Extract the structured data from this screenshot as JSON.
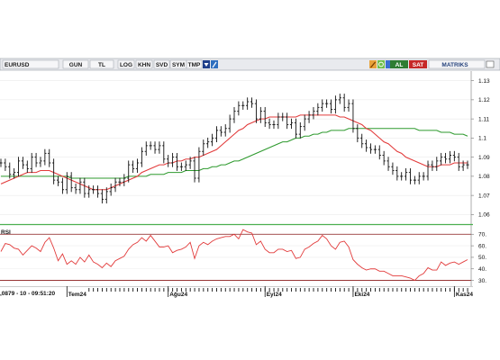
{
  "toolbar": {
    "symbol": "EURUSD",
    "period": "GUN",
    "currency": "TL",
    "buttons": [
      "LOG",
      "KHN",
      "SVD",
      "SYM",
      "TMP"
    ],
    "buy": "AL",
    "sell": "SAT",
    "brand": "MATRIKS"
  },
  "colors": {
    "price_bars": "#111111",
    "ma_short": "#e23b3b",
    "ma_long": "#2e9a2e",
    "rsi_line": "#e23b3b",
    "rsi_bands": "#8b1a1a",
    "panel_sep": "#4caf50",
    "buy_bg": "#2e7d32",
    "sell_bg": "#c62828"
  },
  "status": {
    "readout": ",0879 - 10 - 09:51:20"
  },
  "chart_data": [
    {
      "type": "line",
      "subtype": "ohlc_bars",
      "x": [
        "Haz24",
        "Haz24",
        "Haz24",
        "Haz24",
        "Haz24",
        "Haz24",
        "Haz24",
        "Haz24",
        "Haz24",
        "Haz24",
        "Haz24",
        "Haz24",
        "Haz24",
        "Haz24",
        "Haz24",
        "Tem24",
        "Tem24",
        "Tem24",
        "Tem24",
        "Tem24",
        "Tem24",
        "Tem24",
        "Tem24",
        "Tem24",
        "Tem24",
        "Tem24",
        "Tem24",
        "Tem24",
        "Tem24",
        "Tem24",
        "Tem24",
        "Tem24",
        "Tem24",
        "Tem24",
        "Tem24",
        "Tem24",
        "Tem24",
        "Tem24",
        "Ağu24",
        "Ağu24",
        "Ağu24",
        "Ağu24",
        "Ağu24",
        "Ağu24",
        "Ağu24",
        "Ağu24",
        "Ağu24",
        "Ağu24",
        "Ağu24",
        "Ağu24",
        "Ağu24",
        "Ağu24",
        "Ağu24",
        "Ağu24",
        "Ağu24",
        "Ağu24",
        "Ağu24",
        "Ağu24",
        "Ağu24",
        "Ağu24",
        "Eyl24",
        "Eyl24",
        "Eyl24",
        "Eyl24",
        "Eyl24",
        "Eyl24",
        "Eyl24",
        "Eyl24",
        "Eyl24",
        "Eyl24",
        "Eyl24",
        "Eyl24",
        "Eyl24",
        "Eyl24",
        "Eyl24",
        "Eyl24",
        "Eyl24",
        "Eyl24",
        "Eyl24",
        "Eyl24",
        "Eki24",
        "Eki24",
        "Eki24",
        "Eki24",
        "Eki24",
        "Eki24",
        "Eki24",
        "Eki24",
        "Eki24",
        "Eki24",
        "Eki24",
        "Eki24",
        "Eki24",
        "Eki24",
        "Eki24",
        "Eki24",
        "Eki24",
        "Eki24",
        "Eki24",
        "Eki24",
        "Eki24",
        "Eki24",
        "Eki24",
        "Kas24",
        "Kas24",
        "Kas24",
        "Kas24"
      ],
      "x_ticks": [
        "Tem24",
        "Ağu24",
        "Eyl24",
        "Eki24",
        "Kas24"
      ],
      "series": [
        {
          "role": "price",
          "values": [
            1.087,
            1.085,
            1.081,
            1.082,
            1.088,
            1.086,
            1.084,
            1.09,
            1.087,
            1.088,
            1.092,
            1.087,
            1.078,
            1.077,
            1.073,
            1.08,
            1.074,
            1.073,
            1.077,
            1.071,
            1.073,
            1.073,
            1.071,
            1.068,
            1.072,
            1.074,
            1.077,
            1.077,
            1.079,
            1.086,
            1.084,
            1.087,
            1.093,
            1.096,
            1.096,
            1.094,
            1.096,
            1.089,
            1.087,
            1.09,
            1.085,
            1.085,
            1.086,
            1.088,
            1.079,
            1.093,
            1.097,
            1.098,
            1.1,
            1.104,
            1.103,
            1.105,
            1.11,
            1.114,
            1.117,
            1.117,
            1.119,
            1.118,
            1.11,
            1.114,
            1.108,
            1.107,
            1.107,
            1.111,
            1.111,
            1.107,
            1.108,
            1.102,
            1.106,
            1.11,
            1.112,
            1.114,
            1.116,
            1.118,
            1.118,
            1.115,
            1.12,
            1.121,
            1.116,
            1.118,
            1.105,
            1.1,
            1.097,
            1.095,
            1.094,
            1.094,
            1.091,
            1.088,
            1.085,
            1.083,
            1.08,
            1.08,
            1.082,
            1.078,
            1.078,
            1.08,
            1.08,
            1.086,
            1.085,
            1.088,
            1.09,
            1.089,
            1.091,
            1.09,
            1.085,
            1.086,
            1.086
          ]
        },
        {
          "role": "moving-average-short",
          "values": [
            1.076,
            1.077,
            1.078,
            1.079,
            1.08,
            1.081,
            1.082,
            1.082,
            1.082,
            1.083,
            1.083,
            1.083,
            1.082,
            1.081,
            1.08,
            1.079,
            1.078,
            1.077,
            1.076,
            1.075,
            1.074,
            1.073,
            1.073,
            1.073,
            1.073,
            1.074,
            1.075,
            1.076,
            1.077,
            1.078,
            1.079,
            1.08,
            1.082,
            1.083,
            1.084,
            1.085,
            1.086,
            1.086,
            1.087,
            1.087,
            1.088,
            1.088,
            1.089,
            1.089,
            1.09,
            1.09,
            1.091,
            1.092,
            1.093,
            1.094,
            1.096,
            1.098,
            1.1,
            1.102,
            1.104,
            1.105,
            1.107,
            1.108,
            1.109,
            1.11,
            1.11,
            1.111,
            1.111,
            1.111,
            1.111,
            1.111,
            1.111,
            1.111,
            1.112,
            1.112,
            1.112,
            1.112,
            1.112,
            1.112,
            1.112,
            1.112,
            1.112,
            1.111,
            1.111,
            1.11,
            1.109,
            1.108,
            1.107,
            1.105,
            1.104,
            1.102,
            1.1,
            1.098,
            1.097,
            1.095,
            1.093,
            1.092,
            1.09,
            1.089,
            1.088,
            1.087,
            1.086,
            1.085,
            1.085,
            1.085,
            1.086,
            1.086,
            1.086,
            1.087,
            1.087,
            1.087,
            1.087
          ]
        },
        {
          "role": "moving-average-long",
          "values": [
            1.08,
            1.08,
            1.08,
            1.08,
            1.08,
            1.08,
            1.08,
            1.08,
            1.08,
            1.08,
            1.08,
            1.08,
            1.08,
            1.08,
            1.08,
            1.08,
            1.079,
            1.079,
            1.079,
            1.079,
            1.079,
            1.079,
            1.079,
            1.079,
            1.079,
            1.079,
            1.079,
            1.079,
            1.079,
            1.08,
            1.08,
            1.08,
            1.08,
            1.08,
            1.081,
            1.081,
            1.081,
            1.081,
            1.082,
            1.082,
            1.082,
            1.082,
            1.083,
            1.083,
            1.083,
            1.083,
            1.084,
            1.084,
            1.085,
            1.085,
            1.086,
            1.086,
            1.087,
            1.088,
            1.088,
            1.089,
            1.09,
            1.091,
            1.092,
            1.093,
            1.094,
            1.095,
            1.096,
            1.097,
            1.098,
            1.098,
            1.099,
            1.1,
            1.1,
            1.101,
            1.101,
            1.102,
            1.102,
            1.103,
            1.103,
            1.104,
            1.104,
            1.104,
            1.104,
            1.105,
            1.105,
            1.105,
            1.105,
            1.105,
            1.105,
            1.105,
            1.105,
            1.105,
            1.105,
            1.105,
            1.105,
            1.105,
            1.105,
            1.105,
            1.105,
            1.104,
            1.104,
            1.104,
            1.104,
            1.104,
            1.103,
            1.103,
            1.103,
            1.102,
            1.102,
            1.102,
            1.101
          ]
        }
      ],
      "y_ticks": [
        "1.13",
        "1.12",
        "1.11",
        "1.1",
        "1.09",
        "1.08",
        "1.07",
        "1.06"
      ],
      "ylim": [
        1.055,
        1.135
      ],
      "grid": true
    },
    {
      "type": "line",
      "title": "RSI",
      "series": [
        {
          "name": "RSI",
          "values": [
            55,
            62,
            61,
            58,
            57,
            52,
            56,
            60,
            58,
            55,
            63,
            67,
            58,
            47,
            53,
            44,
            47,
            44,
            50,
            46,
            52,
            46,
            44,
            41,
            45,
            42,
            47,
            49,
            51,
            57,
            61,
            63,
            67,
            64,
            69,
            64,
            59,
            59,
            60,
            54,
            56,
            57,
            59,
            63,
            49,
            60,
            63,
            61,
            64,
            66,
            67,
            68,
            68,
            70,
            66,
            74,
            72,
            71,
            61,
            64,
            57,
            54,
            54,
            57,
            57,
            55,
            56,
            49,
            50,
            57,
            59,
            62,
            64,
            69,
            66,
            60,
            57,
            63,
            64,
            59,
            48,
            44,
            41,
            39,
            40,
            40,
            38,
            38,
            36,
            34,
            34,
            34,
            33,
            32,
            30,
            34,
            36,
            41,
            39,
            39,
            46,
            43,
            45,
            46,
            44,
            46,
            48
          ]
        }
      ],
      "y_ticks": [
        "70.",
        "60.",
        "50.",
        "40.",
        "30."
      ],
      "bands": [
        30,
        70
      ],
      "ylim": [
        25,
        78
      ]
    }
  ]
}
